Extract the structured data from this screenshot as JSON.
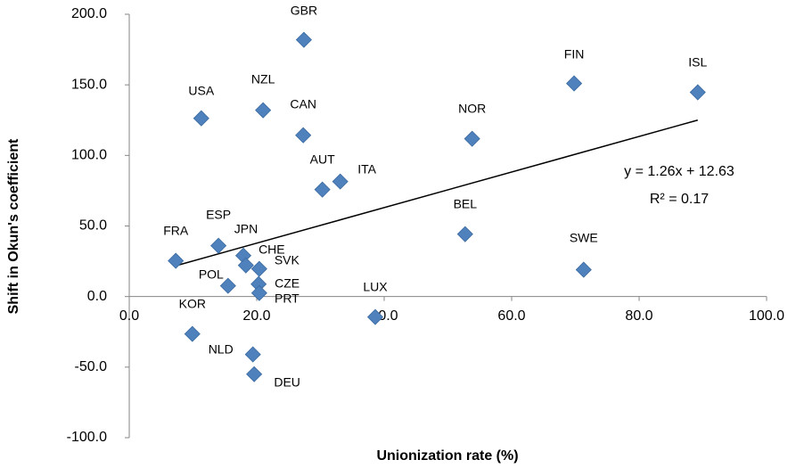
{
  "chart_data": {
    "type": "scatter",
    "x_label": "Unionization rate (%)",
    "y_label": "Shift in Okun's coefficient",
    "color": "#4f81bd",
    "points": [
      "GBR",
      "USA",
      "NZL",
      "CAN",
      "FIN",
      "ISL",
      "NOR",
      "AUT",
      "ITA",
      "BEL",
      "SWE",
      "FRA",
      "ESP",
      "JPN",
      "CHE",
      "SVK",
      "POL",
      "CZE",
      "PRT",
      "LUX",
      "KOR",
      "NLD",
      "DEU"
    ],
    "x": [
      27.4,
      11.3,
      21.0,
      27.3,
      69.8,
      89.2,
      53.8,
      30.3,
      33.1,
      52.7,
      71.3,
      7.3,
      14.0,
      17.9,
      18.3,
      20.4,
      15.5,
      20.3,
      20.4,
      38.6,
      9.9,
      19.4,
      19.6
    ],
    "values": [
      181.9,
      126.3,
      132.0,
      114.3,
      151.0,
      144.7,
      111.8,
      75.8,
      81.5,
      44.2,
      19.0,
      25.3,
      36.0,
      29.0,
      22.1,
      19.6,
      7.6,
      8.8,
      2.5,
      -14.5,
      -26.5,
      -41.0,
      -55.0
    ],
    "xlim": [
      0,
      100
    ],
    "xticks": [
      {
        "value": 0,
        "label": "0.0"
      },
      {
        "value": 20,
        "label": "20.0"
      },
      {
        "value": 40,
        "label": "40.0"
      },
      {
        "value": 60,
        "label": "60.0"
      },
      {
        "value": 80,
        "label": "80.0"
      },
      {
        "value": 100,
        "label": "100.0"
      }
    ],
    "ylim": [
      -100,
      200
    ],
    "yticks": [
      {
        "value": -100,
        "label": "-100.0"
      },
      {
        "value": -50,
        "label": "-50.0"
      },
      {
        "value": 0,
        "label": "0.0"
      },
      {
        "value": 50,
        "label": "50.0"
      },
      {
        "value": 100,
        "label": "100.0"
      },
      {
        "value": 150,
        "label": "150.0"
      },
      {
        "value": 200,
        "label": "200.0"
      }
    ],
    "trendline": {
      "slope": 1.26,
      "intercept": 12.63,
      "equation": "y = 1.26x + 12.63",
      "r2": "R² = 0.17"
    }
  }
}
